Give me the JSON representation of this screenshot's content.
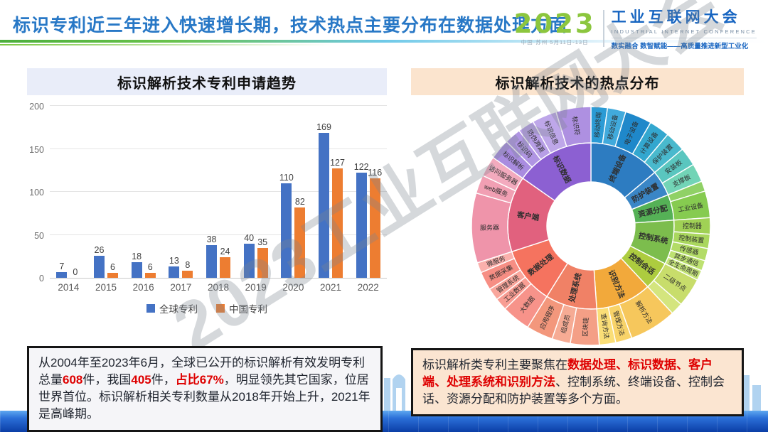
{
  "header": {
    "title": "标识专利近三年进入快速增长期，技术热点主要分布在数据处理方面",
    "logo": {
      "year": "2023",
      "venue": "中国·苏州 5月11日-13日",
      "name_cn": "工业互联网大会",
      "name_en": "INDUSTRIAL INTERNET CONFERENCE",
      "tagline": "数实融合 数智赋能——高质量推进新型工业化"
    }
  },
  "watermark": "2023工业互联网大会",
  "colors": {
    "global_series": "#4472C4",
    "china_series": "#ED7D31",
    "highlight_red": "#DE0000"
  },
  "summary_left": {
    "runs": [
      {
        "text": "从2004年至2023年6月，全球已公开的标识解析有效发明专利总量",
        "em": false
      },
      {
        "text": "608",
        "em": true
      },
      {
        "text": "件，我国",
        "em": false
      },
      {
        "text": "405",
        "em": true
      },
      {
        "text": "件，",
        "em": false
      },
      {
        "text": "占比67%",
        "em": true
      },
      {
        "text": "，明显领先其它国家，位居世界首位。标识解析相关专利数量从2018年开始上升，2021年是高峰期。",
        "em": false
      }
    ]
  },
  "summary_right": {
    "runs": [
      {
        "text": "标识解析类专利主要聚焦在",
        "em": false
      },
      {
        "text": "数据处理、标识数据、客户端、处理系统和识别方法",
        "em": true
      },
      {
        "text": "、控制系统、终端设备、控制会话、资源分配和防护装置等多个方面。",
        "em": false
      }
    ]
  },
  "chart_data": [
    {
      "type": "bar",
      "title": "标识解析技术专利申请趋势",
      "categories": [
        "2014",
        "2015",
        "2016",
        "2017",
        "2018",
        "2019",
        "2020",
        "2021",
        "2022"
      ],
      "series": [
        {
          "name": "全球专利",
          "color": "#4472C4",
          "values": [
            7,
            26,
            18,
            13,
            38,
            40,
            110,
            169,
            122
          ]
        },
        {
          "name": "中国专利",
          "color": "#ED7D31",
          "values": [
            0,
            6,
            6,
            8,
            24,
            35,
            82,
            127,
            116
          ]
        }
      ],
      "ylim": [
        0,
        200
      ],
      "yticks": [
        0,
        50,
        100,
        150,
        200
      ],
      "grid": true,
      "legend_position": "bottom"
    },
    {
      "type": "sunburst",
      "title": "标识解析技术的热点分布",
      "unit": "degrees",
      "segments": [
        {
          "label": "终端设备",
          "span": 50,
          "color": "#2D7CC1",
          "children": [
            {
              "label": "移动终端",
              "span": 8,
              "color": "#2B9BD5"
            },
            {
              "label": "移动设备",
              "span": 9,
              "color": "#41AADC"
            },
            {
              "label": "电子设备",
              "span": 13,
              "color": "#1F88CA"
            },
            {
              "label": "计算设备",
              "span": 10,
              "color": "#33A7CF"
            },
            {
              "label": "保护装置",
              "span": 10,
              "color": "#49B9CD"
            }
          ]
        },
        {
          "label": "防护装置",
          "span": 18,
          "color": "#3A86C6",
          "children": [
            {
              "label": "安装板",
              "span": 9,
              "color": "#5AC6BF"
            },
            {
              "label": "支撑板",
              "span": 9,
              "color": "#72D4B6"
            }
          ]
        },
        {
          "label": "资源分配",
          "span": 18,
          "color": "#55B156",
          "children": [
            {
              "label": "",
              "span": 5,
              "color": "#90D166"
            },
            {
              "label": "工业设备",
              "span": 13,
              "color": "#86CB50"
            }
          ]
        },
        {
          "label": "控制系统",
          "span": 31,
          "color": "#7CBD4D",
          "children": [
            {
              "label": "控制器",
              "span": 8,
              "color": "#A0D155"
            },
            {
              "label": "控制装置",
              "span": 7,
              "color": "#AAD75E"
            },
            {
              "label": "传感器",
              "span": 6,
              "color": "#B3DC67"
            },
            {
              "label": "异步通信",
              "span": 5,
              "color": "#BDE171"
            },
            {
              "label": "全生命周期",
              "span": 5,
              "color": "#C6E67B"
            }
          ]
        },
        {
          "label": "控制会话",
          "span": 20,
          "color": "#ADCC3F",
          "children": [
            {
              "label": "二级节点",
              "span": 14,
              "color": "#C8DD6B"
            },
            {
              "label": "",
              "span": 6,
              "color": "#D4E57E"
            }
          ]
        },
        {
          "label": "识别方法",
          "span": 39,
          "color": "#F2A93B",
          "children": [
            {
              "label": "解析方法",
              "span": 23,
              "color": "#F6C75C"
            },
            {
              "label": "管理方法",
              "span": 8,
              "color": "#F8D369"
            },
            {
              "label": "查询方法",
              "span": 8,
              "color": "#FADE77"
            }
          ]
        },
        {
          "label": "处理系统",
          "span": 36,
          "color": "#F08166",
          "children": [
            {
              "label": "区块链",
              "span": 14,
              "color": "#F49F86"
            },
            {
              "label": "组成员",
              "span": 9,
              "color": "#F6AB94"
            },
            {
              "label": "应用程序",
              "span": 13,
              "color": "#F3977C"
            }
          ]
        },
        {
          "label": "数据处理",
          "span": 40,
          "color": "#F5735F",
          "children": [
            {
              "label": "大数据",
              "span": 14,
              "color": "#F7938A"
            },
            {
              "label": "工业数据",
              "span": 6,
              "color": "#F89D93"
            },
            {
              "label": "管理系统",
              "span": 6,
              "color": "#F9A69C"
            },
            {
              "label": "数据采集",
              "span": 9,
              "color": "#F78E84"
            },
            {
              "label": "微服务",
              "span": 5,
              "color": "#FAB0AC"
            }
          ]
        },
        {
          "label": "客户端",
          "span": 53,
          "color": "#E1617E",
          "children": [
            {
              "label": "服务器",
              "span": 34,
              "color": "#EF94AA"
            },
            {
              "label": "web服务",
              "span": 9,
              "color": "#F19FB3"
            },
            {
              "label": "访问服务器",
              "span": 10,
              "color": "#F3AABE"
            }
          ]
        },
        {
          "label": "标识数据",
          "span": 55,
          "color": "#8C60D2",
          "children": [
            {
              "label": "标识解析",
              "span": 10,
              "color": "#A98CE0"
            },
            {
              "label": "标识码",
              "span": 8,
              "color": "#B095E3"
            },
            {
              "label": "防伪溯源",
              "span": 8,
              "color": "#B79EE6"
            },
            {
              "label": "标识信息",
              "span": 12,
              "color": "#BEA7E9"
            },
            {
              "label": "标识符",
              "span": 17,
              "color": "#AE90E1"
            }
          ]
        }
      ]
    }
  ]
}
